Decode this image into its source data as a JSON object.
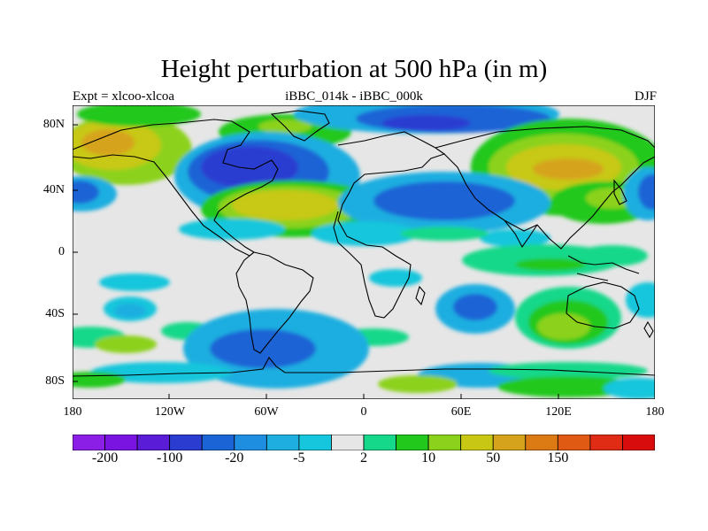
{
  "title": "Height perturbation at 500 hPa (in m)",
  "subtitle_left": "Expt = xlcoo-xlcoa",
  "subtitle_center": "iBBC_014k - iBBC_000k",
  "subtitle_right": "DJF",
  "lat_labels": [
    "80N",
    "40N",
    "0",
    "40S",
    "80S"
  ],
  "lon_labels": [
    "180",
    "120W",
    "60W",
    "0",
    "60E",
    "120E",
    "180"
  ],
  "colorbar": {
    "colors": [
      "#8c1fe6",
      "#7a14e0",
      "#5a1cd6",
      "#2b3cd1",
      "#1a64d6",
      "#1e8ee0",
      "#1eaee0",
      "#16c6dc",
      "#e6e6e6",
      "#16d88a",
      "#22c81c",
      "#8cd21c",
      "#c8c814",
      "#d6a41c",
      "#dc7a14",
      "#e05a14",
      "#e02c14",
      "#d80c0c"
    ],
    "labels": [
      {
        "text": "-200",
        "boundary": 1
      },
      {
        "text": "-100",
        "boundary": 3
      },
      {
        "text": "-20",
        "boundary": 5
      },
      {
        "text": "-5",
        "boundary": 7
      },
      {
        "text": "2",
        "boundary": 9
      },
      {
        "text": "10",
        "boundary": 11
      },
      {
        "text": "50",
        "boundary": 13
      },
      {
        "text": "150",
        "boundary": 15
      }
    ]
  },
  "map_colors": {
    "neutral": "#e6e6e6",
    "light_cyan": "#16c6dc",
    "cyan": "#1eaee0",
    "blue": "#1a64d6",
    "dark_blue": "#2b3cd1",
    "teal_green": "#16d88a",
    "green": "#22c81c",
    "lime": "#8cd21c",
    "olive": "#c8c814",
    "gold": "#d6a41c"
  }
}
